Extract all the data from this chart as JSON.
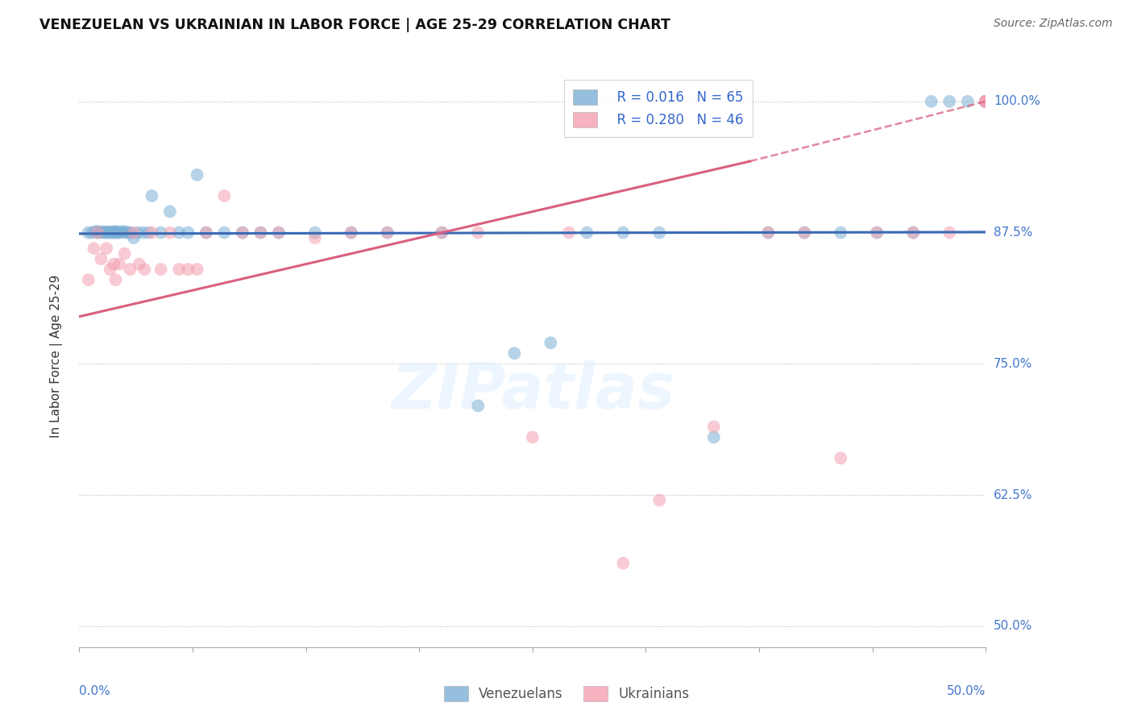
{
  "title": "VENEZUELAN VS UKRAINIAN IN LABOR FORCE | AGE 25-29 CORRELATION CHART",
  "source": "Source: ZipAtlas.com",
  "ylabel": "In Labor Force | Age 25-29",
  "legend_r1": "R = 0.016",
  "legend_n1": "N = 65",
  "legend_r2": "R = 0.280",
  "legend_n2": "N = 46",
  "blue_color": "#7BAFD4",
  "pink_color": "#F4A0B0",
  "trend_blue_color": "#3B6BB5",
  "trend_pink_color": "#D95F7F",
  "watermark": "ZIPatlas",
  "xlim": [
    0.0,
    0.5
  ],
  "ylim": [
    0.48,
    1.035
  ],
  "yticks": [
    0.5,
    0.625,
    0.75,
    0.875,
    1.0
  ],
  "ytick_labels": [
    "50.0%",
    "62.5%",
    "75.0%",
    "87.5%",
    "100.0%"
  ],
  "blue_x": [
    0.005,
    0.007,
    0.009,
    0.01,
    0.01,
    0.012,
    0.013,
    0.014,
    0.015,
    0.016,
    0.017,
    0.018,
    0.019,
    0.02,
    0.02,
    0.021,
    0.022,
    0.023,
    0.025,
    0.025,
    0.027,
    0.028,
    0.03,
    0.032,
    0.035,
    0.038,
    0.04,
    0.045,
    0.05,
    0.055,
    0.06,
    0.065,
    0.07,
    0.08,
    0.09,
    0.1,
    0.11,
    0.13,
    0.15,
    0.17,
    0.2,
    0.22,
    0.24,
    0.26,
    0.28,
    0.3,
    0.32,
    0.35,
    0.38,
    0.4,
    0.42,
    0.44,
    0.46,
    0.47,
    0.48,
    0.49,
    0.5,
    0.5,
    0.5,
    0.5,
    0.5,
    0.5,
    0.5,
    0.5,
    0.5
  ],
  "blue_y": [
    0.875,
    0.875,
    0.876,
    0.875,
    0.876,
    0.875,
    0.876,
    0.875,
    0.875,
    0.876,
    0.875,
    0.875,
    0.876,
    0.875,
    0.876,
    0.875,
    0.875,
    0.876,
    0.875,
    0.876,
    0.875,
    0.875,
    0.87,
    0.875,
    0.875,
    0.875,
    0.91,
    0.875,
    0.895,
    0.875,
    0.875,
    0.93,
    0.875,
    0.875,
    0.875,
    0.875,
    0.875,
    0.875,
    0.875,
    0.875,
    0.875,
    0.71,
    0.76,
    0.77,
    0.875,
    0.875,
    0.875,
    0.68,
    0.875,
    0.875,
    0.875,
    0.875,
    0.875,
    1.0,
    1.0,
    1.0,
    1.0,
    1.0,
    1.0,
    1.0,
    1.0,
    1.0,
    1.0,
    1.0,
    1.0
  ],
  "pink_x": [
    0.005,
    0.008,
    0.01,
    0.012,
    0.015,
    0.017,
    0.019,
    0.02,
    0.022,
    0.025,
    0.028,
    0.03,
    0.033,
    0.036,
    0.04,
    0.045,
    0.05,
    0.055,
    0.06,
    0.065,
    0.07,
    0.08,
    0.09,
    0.1,
    0.11,
    0.13,
    0.15,
    0.17,
    0.2,
    0.22,
    0.25,
    0.27,
    0.3,
    0.32,
    0.35,
    0.38,
    0.4,
    0.42,
    0.44,
    0.46,
    0.48,
    0.5,
    0.5,
    0.5,
    0.5,
    0.5
  ],
  "pink_y": [
    0.83,
    0.86,
    0.875,
    0.85,
    0.86,
    0.84,
    0.845,
    0.83,
    0.845,
    0.855,
    0.84,
    0.875,
    0.845,
    0.84,
    0.875,
    0.84,
    0.875,
    0.84,
    0.84,
    0.84,
    0.875,
    0.91,
    0.875,
    0.875,
    0.875,
    0.87,
    0.875,
    0.875,
    0.875,
    0.875,
    0.68,
    0.875,
    0.56,
    0.62,
    0.69,
    0.875,
    0.875,
    0.66,
    0.875,
    0.875,
    0.875,
    1.0,
    1.0,
    1.0,
    1.0,
    1.0
  ],
  "blue_trend": [
    0.0,
    0.5,
    0.874,
    0.8755
  ],
  "pink_trend_solid": [
    0.0,
    0.37,
    0.795,
    0.943
  ],
  "pink_trend_dashed": [
    0.37,
    0.5,
    0.943,
    1.0
  ]
}
